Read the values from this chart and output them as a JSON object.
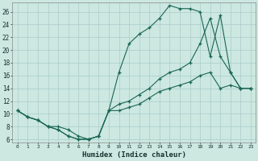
{
  "xlabel": "Humidex (Indice chaleur)",
  "ylabel": "",
  "background_color": "#cce8e0",
  "grid_color": "#aacccc",
  "line_color": "#1a6655",
  "xlim": [
    -0.5,
    23.5
  ],
  "ylim": [
    5.5,
    27.5
  ],
  "xticks": [
    0,
    1,
    2,
    3,
    4,
    5,
    6,
    7,
    8,
    9,
    10,
    11,
    12,
    13,
    14,
    15,
    16,
    17,
    18,
    19,
    20,
    21,
    22,
    23
  ],
  "yticks": [
    6,
    8,
    10,
    12,
    14,
    16,
    18,
    20,
    22,
    24,
    26
  ],
  "line1_x": [
    0,
    1,
    2,
    3,
    4,
    5,
    6,
    7,
    8,
    9,
    10,
    11,
    12,
    13,
    14,
    15,
    16,
    17,
    18,
    19,
    20,
    21,
    22,
    23
  ],
  "line1_y": [
    10.5,
    9.5,
    9.0,
    8.0,
    7.5,
    6.5,
    6.0,
    6.0,
    6.5,
    10.5,
    16.5,
    21.0,
    22.5,
    23.5,
    25.0,
    27.0,
    26.5,
    26.5,
    26.0,
    19.0,
    25.5,
    16.5,
    14.0,
    14.0
  ],
  "line2_x": [
    0,
    1,
    2,
    3,
    4,
    5,
    6,
    7,
    8,
    9,
    10,
    11,
    12,
    13,
    14,
    15,
    16,
    17,
    18,
    19,
    20,
    21,
    22,
    23
  ],
  "line2_y": [
    10.5,
    9.5,
    9.0,
    8.0,
    7.5,
    6.5,
    6.0,
    6.0,
    6.5,
    10.5,
    11.5,
    12.0,
    13.0,
    14.0,
    15.5,
    16.5,
    17.0,
    18.0,
    21.0,
    25.0,
    19.0,
    16.5,
    14.0,
    14.0
  ],
  "line3_x": [
    0,
    1,
    2,
    3,
    4,
    5,
    6,
    7,
    8,
    9,
    10,
    11,
    12,
    13,
    14,
    15,
    16,
    17,
    18,
    19,
    20,
    21,
    22,
    23
  ],
  "line3_y": [
    10.5,
    9.5,
    9.0,
    8.0,
    8.0,
    7.5,
    6.5,
    6.0,
    6.5,
    10.5,
    10.5,
    11.0,
    11.5,
    12.5,
    13.5,
    14.0,
    14.5,
    15.0,
    16.0,
    16.5,
    14.0,
    14.5,
    14.0,
    14.0
  ]
}
